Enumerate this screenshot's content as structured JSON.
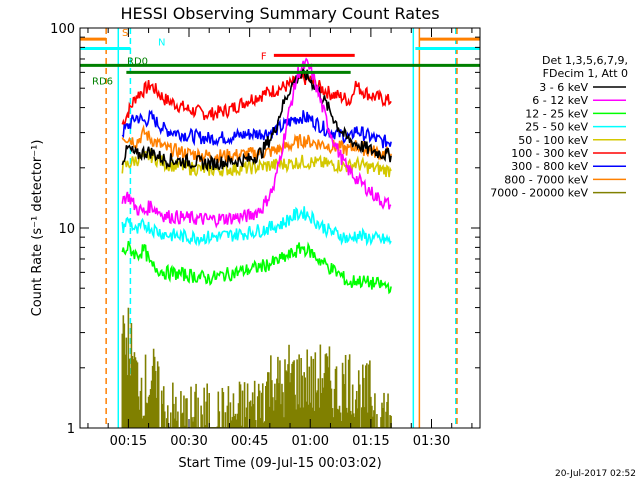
{
  "chart_data": {
    "type": "line",
    "title": "HESSI Observing Summary Count Rates",
    "xlabel": "Start Time (09-Jul-15 00:03:02)",
    "ylabel": "Count Rate (s⁻¹ detector⁻¹)",
    "yscale": "log",
    "ylim": [
      1,
      100
    ],
    "xlim_minutes": [
      3.03,
      102
    ],
    "xticks": [
      {
        "minute": 15,
        "label": "00:15"
      },
      {
        "minute": 30,
        "label": "00:30"
      },
      {
        "minute": 45,
        "label": "00:45"
      },
      {
        "minute": 60,
        "label": "01:00"
      },
      {
        "minute": 75,
        "label": "01:15"
      },
      {
        "minute": 90,
        "label": "01:30"
      }
    ],
    "yticks": [
      {
        "value": 1,
        "label": "1"
      },
      {
        "value": 10,
        "label": "10"
      },
      {
        "value": 100,
        "label": "100"
      }
    ],
    "legend": {
      "placement": "right",
      "header": [
        "Det 1,3,5,6,7,9,",
        "FDecim 1, Att 0"
      ],
      "entries": [
        {
          "label": "3 - 6 keV",
          "color": "#000000"
        },
        {
          "label": "6 - 12 keV",
          "color": "#ff00ff"
        },
        {
          "label": "12 - 25 keV",
          "color": "#00ff00"
        },
        {
          "label": "25 - 50 keV",
          "color": "#00ffff"
        },
        {
          "label": "50 - 100 keV",
          "color": "#d4c800"
        },
        {
          "label": "100 - 300 keV",
          "color": "#ff0000"
        },
        {
          "label": "300 - 800 keV",
          "color": "#0000ff"
        },
        {
          "label": "800 - 7000 keV",
          "color": "#ff8000"
        },
        {
          "label": "7000 - 20000 keV",
          "color": "#808000"
        }
      ]
    },
    "series": [
      {
        "color": "#ff0000",
        "x": [
          13.5,
          17,
          19,
          20.5,
          24,
          30,
          35,
          40,
          45,
          50,
          55,
          58,
          60,
          62,
          65,
          68,
          70,
          71,
          72,
          75,
          78,
          80
        ],
        "y": [
          33,
          46,
          49,
          52,
          44,
          39,
          37,
          39,
          44,
          48,
          52,
          56,
          55,
          51,
          47,
          45,
          43,
          53,
          50,
          46,
          44,
          43
        ]
      },
      {
        "color": "#0000ff",
        "x": [
          13.5,
          17,
          19,
          20.5,
          24,
          30,
          35,
          40,
          45,
          50,
          53,
          56,
          58,
          60,
          62,
          64,
          66,
          68,
          70,
          71,
          74,
          78,
          80
        ],
        "y": [
          30,
          36,
          34,
          36,
          31,
          29,
          28,
          28.5,
          29.5,
          30,
          32,
          35,
          36,
          35,
          33,
          31,
          30,
          29,
          28,
          31,
          29,
          27,
          27
        ]
      },
      {
        "color": "#ff8000",
        "x": [
          13.5,
          17,
          19,
          20.5,
          24,
          30,
          35,
          40,
          45,
          50,
          53,
          56,
          58,
          60,
          62,
          64,
          66,
          68,
          70,
          71,
          74,
          78,
          80
        ],
        "y": [
          29,
          27,
          30,
          28,
          25,
          23.5,
          23,
          23,
          23.5,
          24,
          25,
          26.5,
          27.5,
          27,
          26.5,
          26,
          25.5,
          25,
          24.5,
          26,
          24.5,
          23.5,
          23.5
        ]
      },
      {
        "color": "#d4c800",
        "x": [
          13.5,
          17,
          19,
          20.5,
          24,
          30,
          35,
          40,
          45,
          50,
          55,
          58,
          60,
          63,
          66,
          70,
          71,
          75,
          80
        ],
        "y": [
          20,
          22,
          22.5,
          23,
          21,
          20,
          19.5,
          19.7,
          20,
          20.5,
          21,
          21.5,
          21.3,
          21,
          20.7,
          20.3,
          21,
          20,
          19.3
        ]
      },
      {
        "color": "#000000",
        "x": [
          13.5,
          15,
          17,
          19,
          20.5,
          24,
          30,
          35,
          40,
          45,
          48,
          51,
          53,
          55,
          57,
          59,
          61,
          63,
          65,
          67,
          69,
          70.5,
          72,
          75,
          78,
          80
        ],
        "y": [
          22,
          25,
          23,
          24,
          24,
          22,
          21.5,
          21,
          21.5,
          22,
          24,
          30,
          40,
          50,
          57,
          58,
          52,
          45,
          38,
          32,
          28,
          27,
          26,
          24.5,
          23.5,
          23
        ]
      },
      {
        "color": "#ff00ff",
        "x": [
          13.5,
          15,
          17,
          19,
          20.5,
          24,
          30,
          35,
          40,
          45,
          48,
          51,
          53,
          55,
          57,
          59,
          60,
          61,
          63,
          65,
          67,
          69,
          71,
          73,
          76,
          78,
          80
        ],
        "y": [
          14,
          14.5,
          12.5,
          12,
          13,
          11.5,
          11.2,
          11,
          11.2,
          11.5,
          12.5,
          16,
          25,
          40,
          60,
          66,
          62,
          55,
          40,
          30,
          24,
          20,
          18,
          16.5,
          14.5,
          13.5,
          13
        ]
      },
      {
        "color": "#00ffff",
        "x": [
          13.5,
          15,
          17,
          19,
          20.5,
          24,
          30,
          35,
          40,
          45,
          50,
          53,
          56,
          58,
          60,
          62,
          65,
          68,
          70,
          71,
          75,
          80
        ],
        "y": [
          10,
          11,
          9.5,
          10.5,
          10,
          9.3,
          9,
          9,
          9.2,
          9.5,
          10,
          10.5,
          11.5,
          12,
          11.5,
          10.5,
          9.6,
          9.1,
          8.7,
          9.2,
          8.9,
          8.6
        ]
      },
      {
        "color": "#00ff00",
        "x": [
          13.5,
          15,
          17,
          19,
          20.5,
          24,
          30,
          35,
          40,
          45,
          50,
          53,
          56,
          58,
          60,
          62,
          65,
          68,
          70,
          71,
          75,
          80
        ],
        "y": [
          7.5,
          8,
          7.3,
          7.8,
          6.5,
          6,
          5.8,
          5.6,
          5.9,
          6.2,
          6.6,
          7,
          7.5,
          8,
          7.6,
          7,
          6.3,
          5.7,
          5.2,
          5.5,
          5.3,
          5.1
        ]
      },
      {
        "color": "#808000",
        "x": [
          13.5,
          15,
          17,
          19,
          21,
          23,
          25,
          28,
          33,
          38,
          43,
          47,
          49,
          51,
          53,
          55,
          57,
          59,
          61,
          63,
          65,
          67,
          69,
          71,
          73,
          75,
          77,
          80
        ],
        "y": [
          2.5,
          2.8,
          1.8,
          1.6,
          1.8,
          1.3,
          1.2,
          1.1,
          1.15,
          1.1,
          1.2,
          1.3,
          1.6,
          1.8,
          1.5,
          1.9,
          1.7,
          1.8,
          1.6,
          1.9,
          1.7,
          1.5,
          1.8,
          1.6,
          1.4,
          1.5,
          1.2,
          1.15
        ]
      }
    ],
    "state_bars": [
      {
        "label": "S",
        "color": "#ff8000",
        "y": 88,
        "segments": [
          [
            3.03,
            9.5
          ],
          [
            87,
            102
          ]
        ]
      },
      {
        "label": "N",
        "color": "#00ffff",
        "y": 79,
        "segments": [
          [
            3.03,
            15.5
          ],
          [
            86,
            102
          ]
        ]
      },
      {
        "label": "F",
        "color": "#ff0000",
        "y": 73,
        "segments": [
          [
            51,
            71
          ]
        ]
      },
      {
        "label": "RD0",
        "color": "#008000",
        "y": 65,
        "segments": [
          [
            3.03,
            102
          ]
        ]
      },
      {
        "label": "RD6",
        "color": "#008000",
        "y": 60,
        "segments": [
          [
            14.5,
            70
          ]
        ]
      }
    ],
    "vertical_lines": [
      {
        "minute": 9.5,
        "color": "#ff8000",
        "style": "dashed"
      },
      {
        "minute": 12.5,
        "color": "#00ffff",
        "style": "solid"
      },
      {
        "minute": 15.5,
        "color": "#00ffff",
        "style": "dashed"
      },
      {
        "minute": 85.5,
        "color": "#00ffff",
        "style": "solid"
      },
      {
        "minute": 87,
        "color": "#ff8000",
        "style": "solid"
      },
      {
        "minute": 96,
        "color": "#00ffff",
        "style": "dashed"
      },
      {
        "minute": 96.3,
        "color": "#ff8000",
        "style": "dashed"
      }
    ]
  },
  "footer": {
    "timestamp": "20-Jul-2017 02:52"
  }
}
